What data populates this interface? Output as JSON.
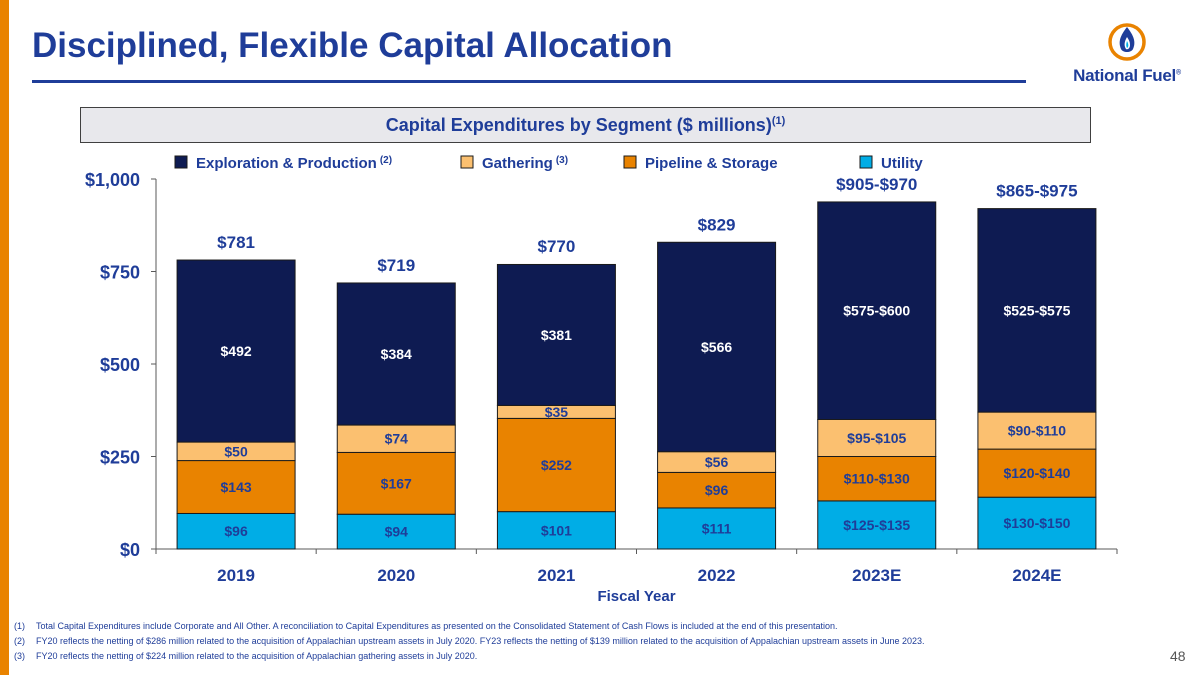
{
  "slide": {
    "title": "Disciplined, Flexible Capital Allocation",
    "page_number": "48",
    "logo_text": "National Fuel",
    "logo_reg": "®"
  },
  "colors": {
    "accent_bar": "#E98300",
    "title": "#1F3D99",
    "ep": "#0E1B52",
    "gathering": "#FBC070",
    "pipeline": "#E98300",
    "utility": "#00ADE6"
  },
  "chart_data": {
    "type": "bar",
    "stacked": true,
    "title": "Capital Expenditures by Segment ($ millions)",
    "title_superscript": "(1)",
    "xlabel": "Fiscal Year",
    "ylabel": "",
    "ylim": [
      0,
      1000
    ],
    "yticks": [
      0,
      250,
      500,
      750,
      1000
    ],
    "ytick_labels": [
      "$0",
      "$250",
      "$500",
      "$750",
      "$1,000"
    ],
    "categories": [
      "2019",
      "2020",
      "2021",
      "2022",
      "2023E",
      "2024E"
    ],
    "legend": [
      {
        "name": "Exploration & Production",
        "superscript": "(2)",
        "color": "#0E1B52"
      },
      {
        "name": "Gathering",
        "superscript": "(3)",
        "color": "#FBC070"
      },
      {
        "name": "Pipeline & Storage",
        "superscript": "",
        "color": "#E98300"
      },
      {
        "name": "Utility",
        "superscript": "",
        "color": "#00ADE6"
      }
    ],
    "series": [
      {
        "name": "Utility",
        "color": "#00ADE6",
        "values": [
          96,
          94,
          101,
          111,
          130,
          140
        ],
        "labels": [
          "$96",
          "$94",
          "$101",
          "$111",
          "$125-$135",
          "$130-$150"
        ]
      },
      {
        "name": "Pipeline & Storage",
        "color": "#E98300",
        "values": [
          143,
          167,
          252,
          96,
          120,
          130
        ],
        "labels": [
          "$143",
          "$167",
          "$252",
          "$96",
          "$110-$130",
          "$120-$140"
        ]
      },
      {
        "name": "Gathering",
        "color": "#FBC070",
        "values": [
          50,
          74,
          35,
          56,
          100,
          100
        ],
        "labels": [
          "$50",
          "$74",
          "$35",
          "$56",
          "$95-$105",
          "$90-$110"
        ]
      },
      {
        "name": "Exploration & Production",
        "color": "#0E1B52",
        "values": [
          492,
          384,
          381,
          566,
          588,
          550
        ],
        "labels": [
          "$492",
          "$384",
          "$381",
          "$566",
          "$575-$600",
          "$525-$575"
        ]
      }
    ],
    "totals": [
      781,
      719,
      770,
      829,
      938,
      920
    ],
    "total_labels": [
      "$781",
      "$719",
      "$770",
      "$829",
      "$905-$970",
      "$865-$975"
    ]
  },
  "footnotes": [
    {
      "num": "(1)",
      "text": "Total Capital Expenditures include Corporate and All Other. A reconciliation to Capital Expenditures as presented on the Consolidated Statement of Cash Flows is included at the end of this presentation."
    },
    {
      "num": "(2)",
      "text": "FY20 reflects the netting of $286 million related to the acquisition of Appalachian upstream assets in July 2020. FY23 reflects the netting of $139 million related to the acquisition of Appalachian upstream assets in June 2023."
    },
    {
      "num": "(3)",
      "text": "FY20 reflects the netting of $224 million related to the acquisition of Appalachian gathering assets in July 2020."
    }
  ]
}
